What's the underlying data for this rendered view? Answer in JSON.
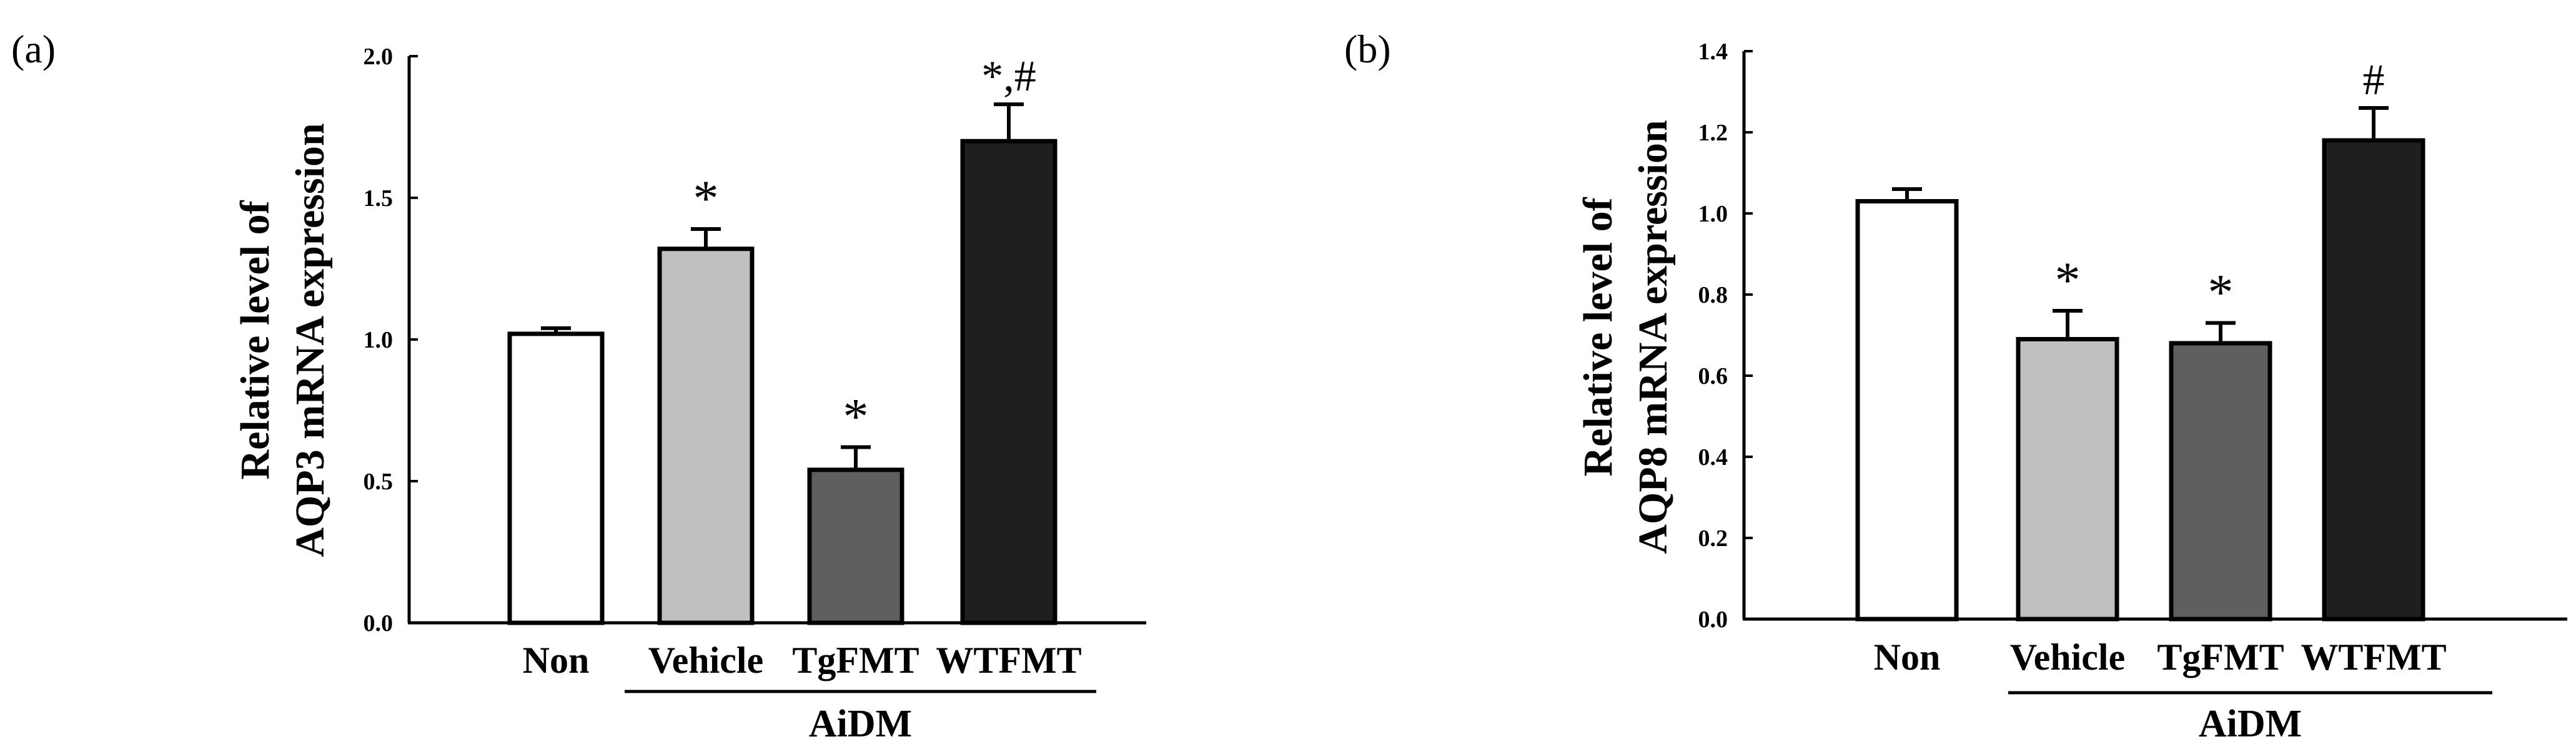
{
  "chart_data": [
    {
      "type": "bar",
      "panel_label": "(a)",
      "ylabel_lines": [
        "Relative level of",
        "AQP3 mRNA expression"
      ],
      "ylim": [
        0,
        2.0
      ],
      "yticks": [
        "0.0",
        "0.5",
        "1.0",
        "1.5",
        "2.0"
      ],
      "categories": [
        "Non",
        "Vehicle",
        "TgFMT",
        "WTFMT"
      ],
      "values": [
        1.02,
        1.32,
        0.54,
        1.7
      ],
      "errors": [
        0.02,
        0.07,
        0.08,
        0.13
      ],
      "annotations": [
        "",
        "*",
        "*",
        "*,#"
      ],
      "bar_colors": [
        "#ffffff",
        "#c0c0c0",
        "#5f5f5f",
        "#1f1f1f"
      ],
      "group_label": "AiDM",
      "group_members": [
        "Vehicle",
        "TgFMT",
        "WTFMT"
      ]
    },
    {
      "type": "bar",
      "panel_label": "(b)",
      "ylabel_lines": [
        "Relative level of",
        "AQP8 mRNA expression"
      ],
      "ylim": [
        0,
        1.4
      ],
      "yticks": [
        "0.0",
        "0.2",
        "0.4",
        "0.6",
        "0.8",
        "1.0",
        "1.2",
        "1.4"
      ],
      "categories": [
        "Non",
        "Vehicle",
        "TgFMT",
        "WTFMT"
      ],
      "values": [
        1.03,
        0.69,
        0.68,
        1.18
      ],
      "errors": [
        0.03,
        0.07,
        0.05,
        0.08
      ],
      "annotations": [
        "",
        "*",
        "*",
        "#"
      ],
      "bar_colors": [
        "#ffffff",
        "#c0c0c0",
        "#5f5f5f",
        "#1f1f1f"
      ],
      "group_label": "AiDM",
      "group_members": [
        "Vehicle",
        "TgFMT",
        "WTFMT"
      ]
    }
  ]
}
